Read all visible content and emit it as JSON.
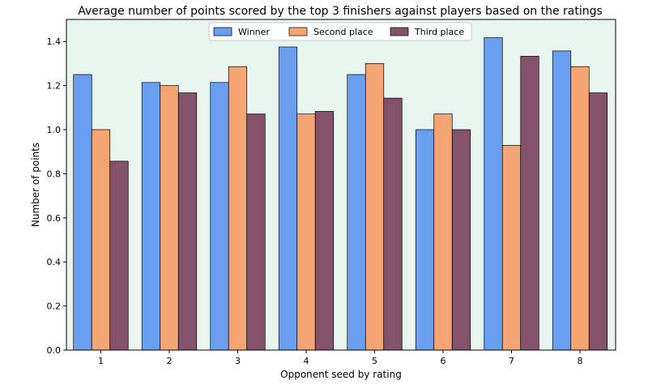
{
  "chart_data": {
    "type": "bar",
    "title": "Average number of points scored by the top 3 finishers against players based on the ratings",
    "xlabel": "Opponent seed by rating",
    "ylabel": "Number of points",
    "categories": [
      "1",
      "2",
      "3",
      "4",
      "5",
      "6",
      "7",
      "8"
    ],
    "series": [
      {
        "name": "Winner",
        "color": "#6a9ff0",
        "values": [
          1.25,
          1.214,
          1.214,
          1.375,
          1.25,
          1.0,
          1.417,
          1.357
        ]
      },
      {
        "name": "Second place",
        "color": "#f5a574",
        "values": [
          1.0,
          1.2,
          1.286,
          1.071,
          1.3,
          1.071,
          0.929,
          1.286
        ]
      },
      {
        "name": "Third place",
        "color": "#84536b",
        "values": [
          0.857,
          1.167,
          1.071,
          1.083,
          1.143,
          1.0,
          1.333,
          1.167
        ]
      }
    ],
    "ylim": [
      0,
      1.5
    ],
    "yticks": [
      "0.0",
      "0.2",
      "0.4",
      "0.6",
      "0.8",
      "1.0",
      "1.2",
      "1.4"
    ],
    "legend_position": "top-center",
    "background_color": "#e8f5ef",
    "grid": false
  }
}
